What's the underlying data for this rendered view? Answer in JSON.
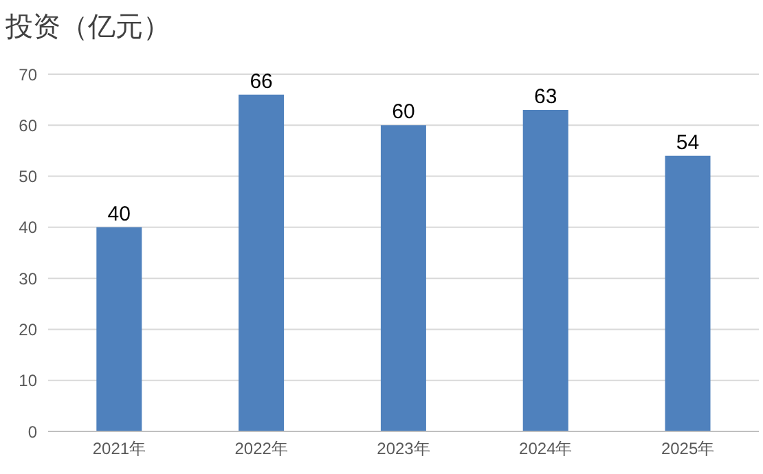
{
  "chart_data": {
    "type": "bar",
    "title": "投资（亿元）",
    "categories": [
      "2021年",
      "2022年",
      "2023年",
      "2024年",
      "2025年"
    ],
    "values": [
      40,
      66,
      60,
      63,
      54
    ],
    "color": "#4f81bd",
    "ylim": [
      0,
      70
    ],
    "yticks": [
      0,
      10,
      20,
      30,
      40,
      50,
      60,
      70
    ],
    "grid": "y",
    "data_labels": true
  }
}
